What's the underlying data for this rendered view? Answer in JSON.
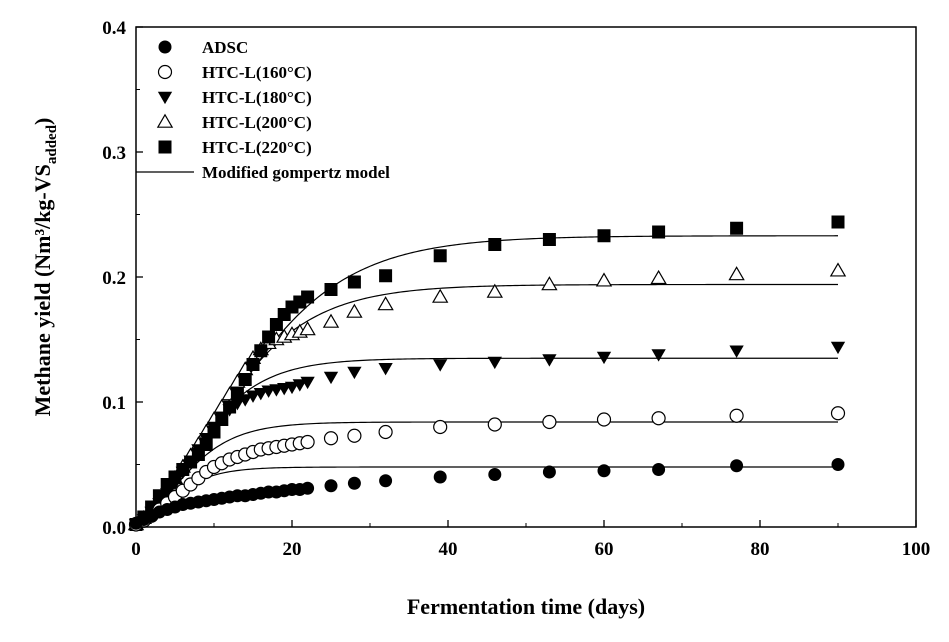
{
  "chart_data": {
    "type": "scatter",
    "xlabel": "Fermentation time (days)",
    "ylabel": "Methane yield (Nm³/kg-VS",
    "ylabel_sub": "added",
    "ylabel_close": ")",
    "xlim": [
      0,
      100
    ],
    "ylim": [
      0.0,
      0.4
    ],
    "xticks": [
      0,
      20,
      40,
      60,
      80,
      100
    ],
    "xtick_labels": [
      "0",
      "20",
      "40",
      "60",
      "80",
      "100"
    ],
    "yticks": [
      0.0,
      0.1,
      0.2,
      0.3,
      0.4
    ],
    "ytick_labels": [
      "0.0",
      "0.1",
      "0.2",
      "0.3",
      "0.4"
    ],
    "grid": false,
    "legend_position": "top-left",
    "x": [
      0,
      1,
      2,
      3,
      4,
      5,
      6,
      7,
      8,
      9,
      10,
      11,
      12,
      13,
      14,
      15,
      16,
      17,
      18,
      19,
      20,
      21,
      22,
      25,
      28,
      32,
      39,
      46,
      53,
      60,
      67,
      77,
      90
    ],
    "series": [
      {
        "name": "ADSC",
        "marker": "filled-circle",
        "values": [
          0.003,
          0.006,
          0.009,
          0.012,
          0.014,
          0.016,
          0.018,
          0.019,
          0.02,
          0.021,
          0.022,
          0.023,
          0.024,
          0.025,
          0.025,
          0.026,
          0.027,
          0.028,
          0.028,
          0.029,
          0.03,
          0.03,
          0.031,
          0.033,
          0.035,
          0.037,
          0.04,
          0.042,
          0.044,
          0.045,
          0.046,
          0.049,
          0.05
        ]
      },
      {
        "name": "HTC-L(160°C)",
        "marker": "open-circle",
        "values": [
          0.002,
          0.005,
          0.009,
          0.014,
          0.019,
          0.024,
          0.029,
          0.034,
          0.039,
          0.044,
          0.048,
          0.051,
          0.054,
          0.056,
          0.058,
          0.06,
          0.062,
          0.063,
          0.064,
          0.065,
          0.066,
          0.067,
          0.068,
          0.071,
          0.073,
          0.076,
          0.08,
          0.082,
          0.084,
          0.086,
          0.087,
          0.089,
          0.091
        ]
      },
      {
        "name": "HTC-L(180°C)",
        "marker": "filled-triangle-down",
        "values": [
          0.002,
          0.006,
          0.012,
          0.019,
          0.027,
          0.035,
          0.044,
          0.053,
          0.062,
          0.071,
          0.08,
          0.088,
          0.094,
          0.099,
          0.102,
          0.105,
          0.107,
          0.109,
          0.11,
          0.111,
          0.112,
          0.114,
          0.116,
          0.12,
          0.124,
          0.127,
          0.13,
          0.132,
          0.134,
          0.136,
          0.138,
          0.141,
          0.144
        ]
      },
      {
        "name": "HTC-L(200°C)",
        "marker": "open-triangle-up",
        "values": [
          0.002,
          0.007,
          0.014,
          0.022,
          0.03,
          0.039,
          0.048,
          0.057,
          0.066,
          0.076,
          0.086,
          0.096,
          0.106,
          0.116,
          0.126,
          0.135,
          0.142,
          0.147,
          0.15,
          0.152,
          0.154,
          0.156,
          0.158,
          0.164,
          0.172,
          0.178,
          0.184,
          0.188,
          0.194,
          0.197,
          0.199,
          0.202,
          0.205
        ]
      },
      {
        "name": "HTC-L(220°C)",
        "marker": "filled-square",
        "values": [
          0.002,
          0.008,
          0.016,
          0.025,
          0.034,
          0.04,
          0.046,
          0.052,
          0.058,
          0.066,
          0.076,
          0.086,
          0.096,
          0.107,
          0.118,
          0.13,
          0.141,
          0.152,
          0.162,
          0.17,
          0.176,
          0.18,
          0.184,
          0.19,
          0.196,
          0.201,
          0.217,
          0.226,
          0.23,
          0.233,
          0.236,
          0.239,
          0.244
        ]
      }
    ],
    "models": [
      {
        "name": "Modified gompertz model",
        "P": 0.048,
        "Rm": 0.0052,
        "lambda": 0.1
      },
      {
        "name": "",
        "P": 0.084,
        "Rm": 0.0072,
        "lambda": 0.5
      },
      {
        "name": "",
        "P": 0.135,
        "Rm": 0.0095,
        "lambda": 1.0
      },
      {
        "name": "",
        "P": 0.194,
        "Rm": 0.0098,
        "lambda": 1.5
      },
      {
        "name": "",
        "P": 0.233,
        "Rm": 0.0098,
        "lambda": 2.0
      }
    ],
    "model_x_range": [
      0,
      90
    ],
    "legend": [
      {
        "label": "ADSC",
        "marker": "filled-circle"
      },
      {
        "label": "HTC-L(160°C)",
        "marker": "open-circle"
      },
      {
        "label": "HTC-L(180°C)",
        "marker": "filled-triangle-down"
      },
      {
        "label": "HTC-L(200°C)",
        "marker": "open-triangle-up"
      },
      {
        "label": "HTC-L(220°C)",
        "marker": "filled-square"
      },
      {
        "label": "Modified gompertz model",
        "marker": "line"
      }
    ]
  }
}
